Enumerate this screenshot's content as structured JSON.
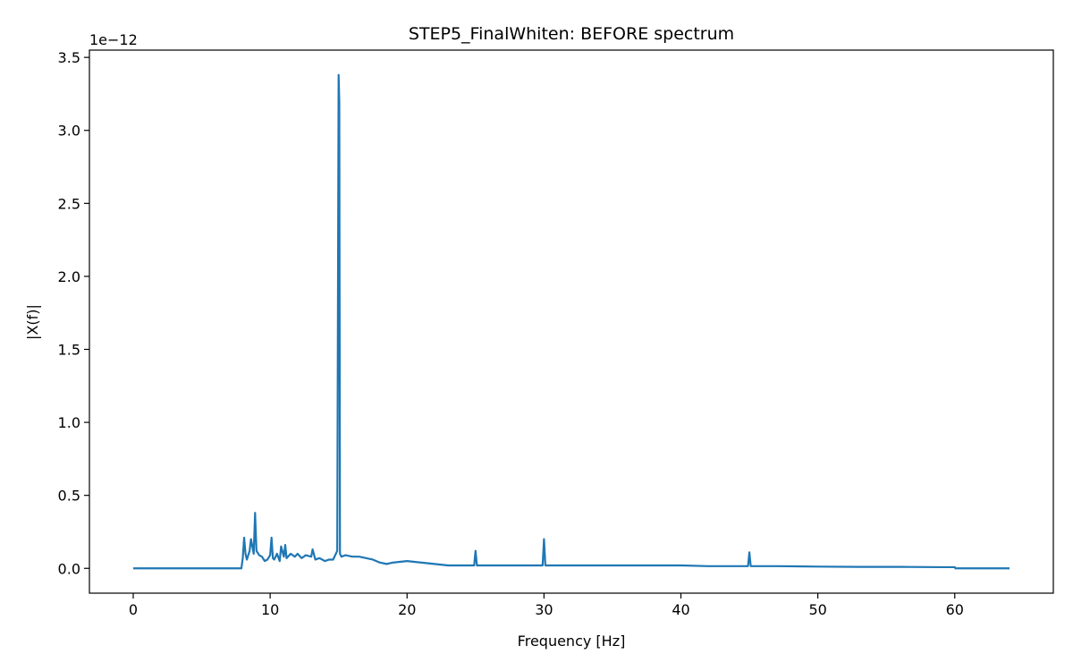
{
  "chart_data": {
    "type": "line",
    "title": "STEP5_FinalWhiten: BEFORE spectrum",
    "xlabel": "Frequency [Hz]",
    "ylabel": "|X(f)|",
    "y_offset_label": "1e−12",
    "xlim": [
      -3.2,
      67.2
    ],
    "ylim": [
      -0.17,
      3.55
    ],
    "y_scale_note": "values in units of 1e-12",
    "xticks": [
      0,
      10,
      20,
      30,
      40,
      50,
      60
    ],
    "xtick_labels": [
      "0",
      "10",
      "20",
      "30",
      "40",
      "50",
      "60"
    ],
    "yticks": [
      0.0,
      0.5,
      1.0,
      1.5,
      2.0,
      2.5,
      3.0,
      3.5
    ],
    "ytick_labels": [
      "0.0",
      "0.5",
      "1.0",
      "1.5",
      "2.0",
      "2.5",
      "3.0",
      "3.5"
    ],
    "grid": false,
    "legend": "none",
    "series": [
      {
        "color": "#1f77b4",
        "x": [
          0,
          7.9,
          8.0,
          8.1,
          8.2,
          8.3,
          8.5,
          8.6,
          8.8,
          8.9,
          9.0,
          9.2,
          9.4,
          9.6,
          9.8,
          10.0,
          10.1,
          10.2,
          10.3,
          10.5,
          10.7,
          10.8,
          11.0,
          11.1,
          11.2,
          11.5,
          11.8,
          12.0,
          12.3,
          12.6,
          13.0,
          13.1,
          13.3,
          13.6,
          14.0,
          14.3,
          14.6,
          14.9,
          15.0,
          15.05,
          15.1,
          15.2,
          15.5,
          16.0,
          16.5,
          17.0,
          17.5,
          18.0,
          18.5,
          19.0,
          20.0,
          21.0,
          22.0,
          23.0,
          24.0,
          24.9,
          25.0,
          25.1,
          26.0,
          27.0,
          28.0,
          29.0,
          29.9,
          30.0,
          30.1,
          31.0,
          33.0,
          35.0,
          38.0,
          40.0,
          42.0,
          44.9,
          45.0,
          45.1,
          47.0,
          50.0,
          53.0,
          56.0,
          59.0,
          60.0,
          60.05,
          64.0
        ],
        "y": [
          0.0,
          0.0,
          0.07,
          0.21,
          0.1,
          0.06,
          0.12,
          0.2,
          0.1,
          0.38,
          0.12,
          0.09,
          0.08,
          0.05,
          0.06,
          0.09,
          0.21,
          0.07,
          0.06,
          0.1,
          0.05,
          0.15,
          0.08,
          0.16,
          0.07,
          0.1,
          0.08,
          0.1,
          0.07,
          0.09,
          0.08,
          0.13,
          0.06,
          0.07,
          0.05,
          0.06,
          0.06,
          0.12,
          3.38,
          3.2,
          0.1,
          0.08,
          0.09,
          0.08,
          0.08,
          0.07,
          0.06,
          0.04,
          0.03,
          0.04,
          0.05,
          0.04,
          0.03,
          0.02,
          0.02,
          0.02,
          0.12,
          0.02,
          0.02,
          0.02,
          0.02,
          0.02,
          0.02,
          0.2,
          0.02,
          0.02,
          0.02,
          0.02,
          0.02,
          0.02,
          0.015,
          0.015,
          0.11,
          0.015,
          0.015,
          0.012,
          0.01,
          0.01,
          0.008,
          0.008,
          0.0,
          0.0
        ]
      }
    ]
  }
}
